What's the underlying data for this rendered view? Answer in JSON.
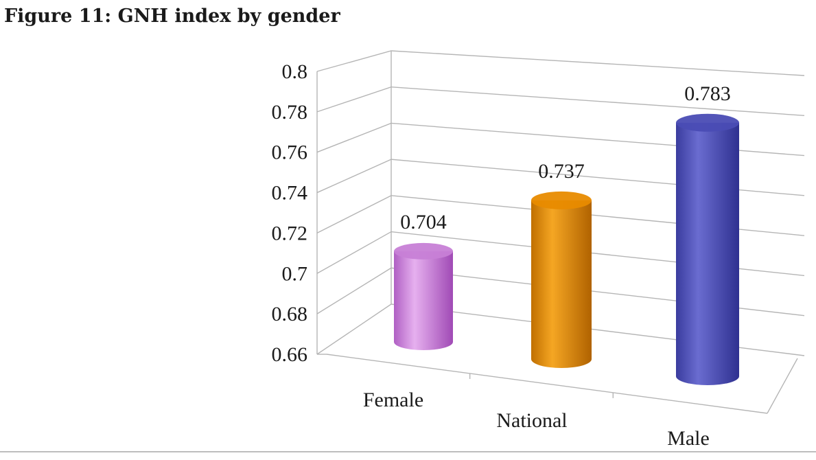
{
  "chart_data": {
    "type": "bar",
    "title": "Figure 11: GNH index by gender",
    "categories": [
      "Female",
      "National",
      "Male"
    ],
    "values": [
      0.704,
      0.737,
      0.783
    ],
    "data_labels": [
      "0.704",
      "0.737",
      "0.783"
    ],
    "colors": [
      "#c77fd6",
      "#e88b00",
      "#4a4cb4"
    ],
    "yticks": [
      "0.8",
      "0.78",
      "0.76",
      "0.74",
      "0.72",
      "0.7",
      "0.68",
      "0.66"
    ],
    "ylim": [
      0.66,
      0.8
    ],
    "grid": true,
    "legend": "none",
    "style": "3d-cylinder"
  }
}
